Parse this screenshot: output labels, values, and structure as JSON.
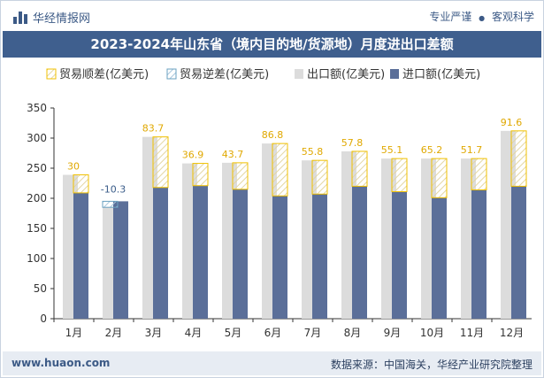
{
  "header": {
    "brand": "华经情报网",
    "tagline_1": "专业严谨",
    "tagline_sep": "●",
    "tagline_2": "客观科学"
  },
  "footer": {
    "website": "www.huaon.com",
    "source": "数据来源：中国海关，华经产业研究院整理"
  },
  "colors": {
    "export": "#dcdcdc",
    "import": "#5b6f99",
    "surplus_border": "#f0c000",
    "deficit_border": "#6aa0c0",
    "label": "#e0a800",
    "deficit_label": "#3b5d8a",
    "title_bg": "#3f5f8e"
  },
  "chart_data": {
    "type": "bar",
    "title": "2023-2024年山东省（境内目的地/货源地）月度进出口差额",
    "categories": [
      "1月",
      "2月",
      "3月",
      "4月",
      "5月",
      "6月",
      "7月",
      "8月",
      "9月",
      "10月",
      "11月",
      "12月"
    ],
    "series": [
      {
        "name": "贸易顺差(亿美元)",
        "values": [
          30,
          null,
          83.7,
          36.9,
          43.7,
          86.8,
          55.8,
          57.8,
          55.1,
          65.2,
          51.7,
          91.6
        ]
      },
      {
        "name": "贸易逆差(亿美元)",
        "values": [
          null,
          -10.3,
          null,
          null,
          null,
          null,
          null,
          null,
          null,
          null,
          null,
          null
        ]
      },
      {
        "name": "出口额(亿美元)",
        "values": [
          239,
          185,
          302,
          258,
          259,
          291,
          263,
          278,
          266,
          266,
          266,
          312
        ]
      },
      {
        "name": "进口额(亿美元)",
        "values": [
          209,
          195,
          218,
          221,
          215,
          204,
          207,
          220,
          211,
          201,
          214,
          220
        ]
      }
    ],
    "data_labels": [
      "30",
      "-10.3",
      "83.7",
      "36.9",
      "43.7",
      "86.8",
      "55.8",
      "57.8",
      "55.1",
      "65.2",
      "51.7",
      "91.6"
    ],
    "yticks": [
      "0",
      "50",
      "100",
      "150",
      "200",
      "250",
      "300",
      "350"
    ],
    "ylim": [
      0,
      350
    ],
    "legend_position": "top",
    "grid": false
  }
}
